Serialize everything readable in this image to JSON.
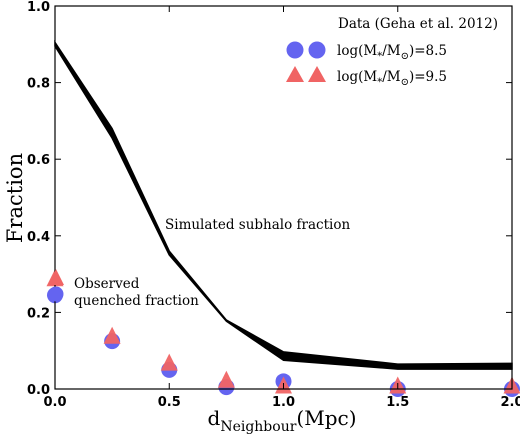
{
  "chart_data": {
    "type": "scatter",
    "xlabel_main": "d",
    "xlabel_sub": "Neighbour",
    "xlabel_unit": "(Mpc)",
    "ylabel": "Fraction",
    "xlim": [
      0.0,
      2.0
    ],
    "ylim": [
      0.0,
      1.0
    ],
    "x_ticks": [
      "0.0",
      "0.5",
      "1.0",
      "1.5",
      "2.0"
    ],
    "y_ticks": [
      "0.0",
      "0.2",
      "0.4",
      "0.6",
      "0.8",
      "1.0"
    ],
    "x_tick_values": [
      0.0,
      0.5,
      1.0,
      1.5,
      2.0
    ],
    "y_tick_values": [
      0.0,
      0.2,
      0.4,
      0.6,
      0.8,
      1.0
    ],
    "legend_title": "Data (Geha et al. 2012)",
    "legend_placement": "top-right",
    "series": [
      {
        "name_prefix": "log(M",
        "name_sub1": "*",
        "name_mid": "/M",
        "name_sub2": "⊙",
        "name_suffix": ")=8.5",
        "marker": "circle",
        "color": "#6464f0",
        "x": [
          0.0,
          0.25,
          0.5,
          0.75,
          1.0,
          1.5,
          2.0
        ],
        "y": [
          0.245,
          0.125,
          0.05,
          0.005,
          0.02,
          0.0,
          0.0
        ]
      },
      {
        "name_prefix": "log(M",
        "name_sub1": "*",
        "name_mid": "/M",
        "name_sub2": "⊙",
        "name_suffix": ")=9.5",
        "marker": "triangle",
        "color": "#f06464",
        "x": [
          0.0,
          0.25,
          0.5,
          0.75,
          1.0,
          1.5,
          2.0
        ],
        "y": [
          0.285,
          0.135,
          0.065,
          0.02,
          0.005,
          0.005,
          0.005
        ]
      }
    ],
    "band": {
      "color": "#000000",
      "x": [
        0.0,
        0.25,
        0.5,
        0.75,
        1.0,
        1.5,
        2.0
      ],
      "upper": [
        0.905,
        0.68,
        0.36,
        0.18,
        0.097,
        0.065,
        0.067
      ],
      "lower": [
        0.895,
        0.655,
        0.35,
        0.177,
        0.075,
        0.052,
        0.052
      ]
    },
    "annotations": {
      "band_label": "Simulated subhalo fraction",
      "observed_line1": "Observed",
      "observed_line2": "quenched fraction"
    }
  }
}
